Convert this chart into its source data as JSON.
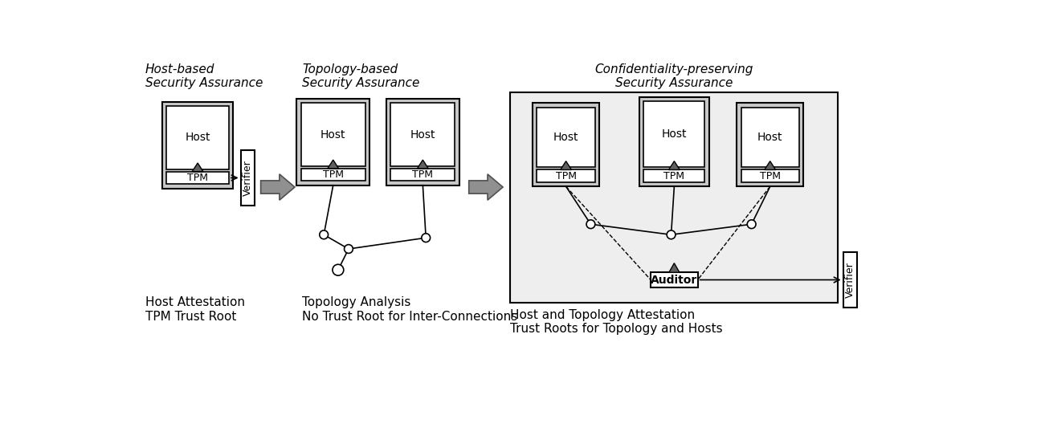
{
  "bg_color": "#ffffff",
  "gray_light": "#c8c8c8",
  "gray_dark": "#606060",
  "arrow_fill": "#909090",
  "arrow_edge": "#505050",
  "enc_fill": "#eeeeee",
  "section1_title": "Host-based\nSecurity Assurance",
  "section2_title": "Topology-based\nSecurity Assurance",
  "section3_title": "Confidentiality-preserving\nSecurity Assurance",
  "caption1": "Host Attestation\nTPM Trust Root",
  "caption2": "Topology Analysis\nNo Trust Root for Inter-Connections",
  "caption3": "Host and Topology Attestation\nTrust Roots for Topology and Hosts",
  "label_host": "Host",
  "label_tpm": "TPM",
  "label_verifier": "Verifier",
  "label_auditor": "Auditor"
}
